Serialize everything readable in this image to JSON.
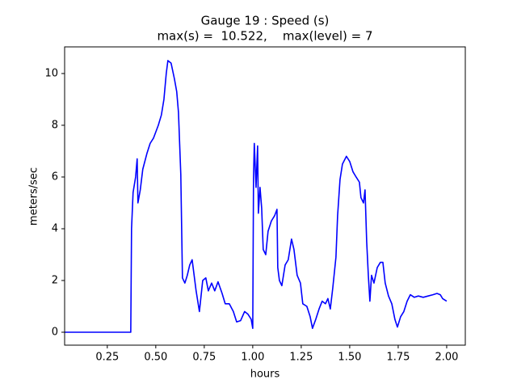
{
  "chart_data": {
    "type": "line",
    "title": "Gauge 19 : Speed (s)",
    "subtitle": "max(s) =  10.522,    max(level) = 7",
    "x_label": "hours",
    "y_label": "meters/sec",
    "xlim": [
      0.03,
      2.096
    ],
    "ylim": [
      -0.5,
      11.03
    ],
    "xticks": [
      0.25,
      {
        "value": 0.5,
        "label": "0.50"
      },
      0.75,
      {
        "value": 1.0,
        "label": "1.00"
      },
      1.25,
      {
        "value": 1.5,
        "label": "1.50"
      },
      1.75,
      {
        "value": 2.0,
        "label": "2.00"
      }
    ],
    "yticks": [
      0,
      2,
      4,
      6,
      8,
      10
    ],
    "x": [
      0.029,
      0.371,
      0.375,
      0.383,
      0.396,
      0.404,
      0.408,
      0.42,
      0.433,
      0.454,
      0.471,
      0.488,
      0.513,
      0.529,
      0.542,
      0.554,
      0.5625,
      0.579,
      0.596,
      0.608,
      0.617,
      0.629,
      0.6375,
      0.65,
      0.6625,
      0.675,
      0.6875,
      0.708,
      0.725,
      0.742,
      0.758,
      0.771,
      0.788,
      0.804,
      0.821,
      0.842,
      0.858,
      0.879,
      0.9,
      0.917,
      0.9375,
      0.958,
      0.975,
      0.992,
      1.0,
      1.004,
      1.008,
      1.017,
      1.025,
      1.029,
      1.0375,
      1.046,
      1.054,
      1.067,
      1.079,
      1.096,
      1.1125,
      1.125,
      1.129,
      1.1375,
      1.15,
      1.167,
      1.183,
      1.2,
      1.2125,
      1.229,
      1.246,
      1.258,
      1.279,
      1.296,
      1.308,
      1.325,
      1.342,
      1.358,
      1.375,
      1.3875,
      1.4,
      1.4125,
      1.429,
      1.4375,
      1.45,
      1.4625,
      1.483,
      1.5,
      1.517,
      1.533,
      1.55,
      1.558,
      1.571,
      1.579,
      1.5875,
      1.596,
      1.604,
      1.6125,
      1.625,
      1.642,
      1.658,
      1.671,
      1.683,
      1.7,
      1.717,
      1.733,
      1.746,
      1.7625,
      1.779,
      1.796,
      1.8125,
      1.833,
      1.854,
      1.879,
      1.904,
      1.929,
      1.95,
      1.967,
      1.979,
      2.0
    ],
    "series": [
      {
        "name": "s",
        "color": "#0000ff",
        "values": [
          0,
          0,
          4,
          5.4,
          6.0,
          6.7,
          5.0,
          5.5,
          6.3,
          6.9,
          7.3,
          7.5,
          8.0,
          8.4,
          9.0,
          10.0,
          10.5,
          10.4,
          9.8,
          9.3,
          8.5,
          6.1,
          2.1,
          1.9,
          2.2,
          2.6,
          2.8,
          1.6,
          0.8,
          2.0,
          2.1,
          1.6,
          1.9,
          1.6,
          1.95,
          1.5,
          1.1,
          1.1,
          0.8,
          0.4,
          0.45,
          0.8,
          0.7,
          0.5,
          0.15,
          6.0,
          7.3,
          5.6,
          7.2,
          4.6,
          5.6,
          4.8,
          3.2,
          3.0,
          3.9,
          4.3,
          4.5,
          4.75,
          2.5,
          2.0,
          1.8,
          2.6,
          2.8,
          3.6,
          3.2,
          2.2,
          1.9,
          1.1,
          1.0,
          0.6,
          0.15,
          0.5,
          0.9,
          1.2,
          1.1,
          1.3,
          0.9,
          1.7,
          2.9,
          4.5,
          5.9,
          6.5,
          6.8,
          6.6,
          6.2,
          6.0,
          5.8,
          5.2,
          5.0,
          5.5,
          3.5,
          2.2,
          1.2,
          2.2,
          1.9,
          2.5,
          2.7,
          2.7,
          1.9,
          1.4,
          1.1,
          0.5,
          0.2,
          0.6,
          0.8,
          1.2,
          1.45,
          1.35,
          1.4,
          1.35,
          1.4,
          1.45,
          1.5,
          1.45,
          1.3,
          1.2
        ]
      }
    ]
  }
}
